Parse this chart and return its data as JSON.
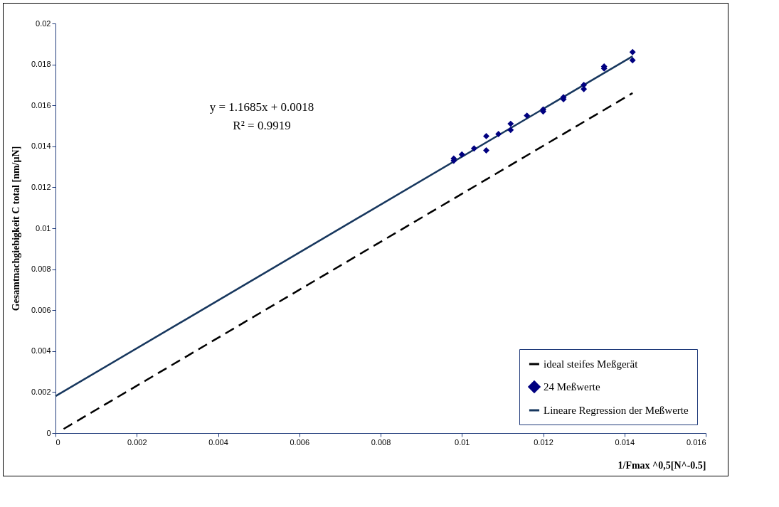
{
  "chart_data": {
    "type": "scatter",
    "xlabel": "1/Fmax ^0,5[N^-0.5]",
    "ylabel": "Gesamtnachgiebigkeit C total [nm/µN]",
    "annotations": [
      "y = 1.1685x + 0.0018",
      "R² = 0.9919"
    ],
    "xlim": [
      0,
      0.016
    ],
    "xticks": [
      0,
      0.002,
      0.004,
      0.006,
      0.008,
      0.01,
      0.012,
      0.014,
      0.016
    ],
    "ylim": [
      0,
      0.02
    ],
    "yticks": [
      0,
      0.002,
      0.004,
      0.006,
      0.008,
      0.01,
      0.012,
      0.014,
      0.016,
      0.018,
      0.02
    ],
    "grid": false,
    "legend": "bottom right",
    "series": [
      {
        "name": "ideal steifes Meßgerät",
        "type": "line",
        "line_style": "dashed",
        "marker": "none",
        "color": "#000000",
        "x": [
          0.0002,
          0.0142
        ],
        "values": [
          0.0002,
          0.0166
        ]
      },
      {
        "name": "24 Meßwerte",
        "marker": "diamond",
        "color": "#000080",
        "x": [
          0.0098,
          0.0098,
          0.01,
          0.0103,
          0.0106,
          0.0106,
          0.0109,
          0.0112,
          0.0112,
          0.0116,
          0.012,
          0.012,
          0.0125,
          0.0125,
          0.013,
          0.013,
          0.0135,
          0.0135,
          0.0142,
          0.0142
        ],
        "values": [
          0.0134,
          0.0133,
          0.0136,
          0.0139,
          0.0145,
          0.0138,
          0.0146,
          0.0151,
          0.0148,
          0.0155,
          0.0158,
          0.0157,
          0.0164,
          0.0163,
          0.017,
          0.0168,
          0.0179,
          0.0178,
          0.0186,
          0.0182
        ]
      },
      {
        "name": "Lineare Regression der Meßwerte",
        "type": "line",
        "line_style": "solid",
        "marker": "none",
        "color": "#17375e",
        "x": [
          0,
          0.0142
        ],
        "values": [
          0.0018,
          0.0184
        ]
      }
    ]
  }
}
